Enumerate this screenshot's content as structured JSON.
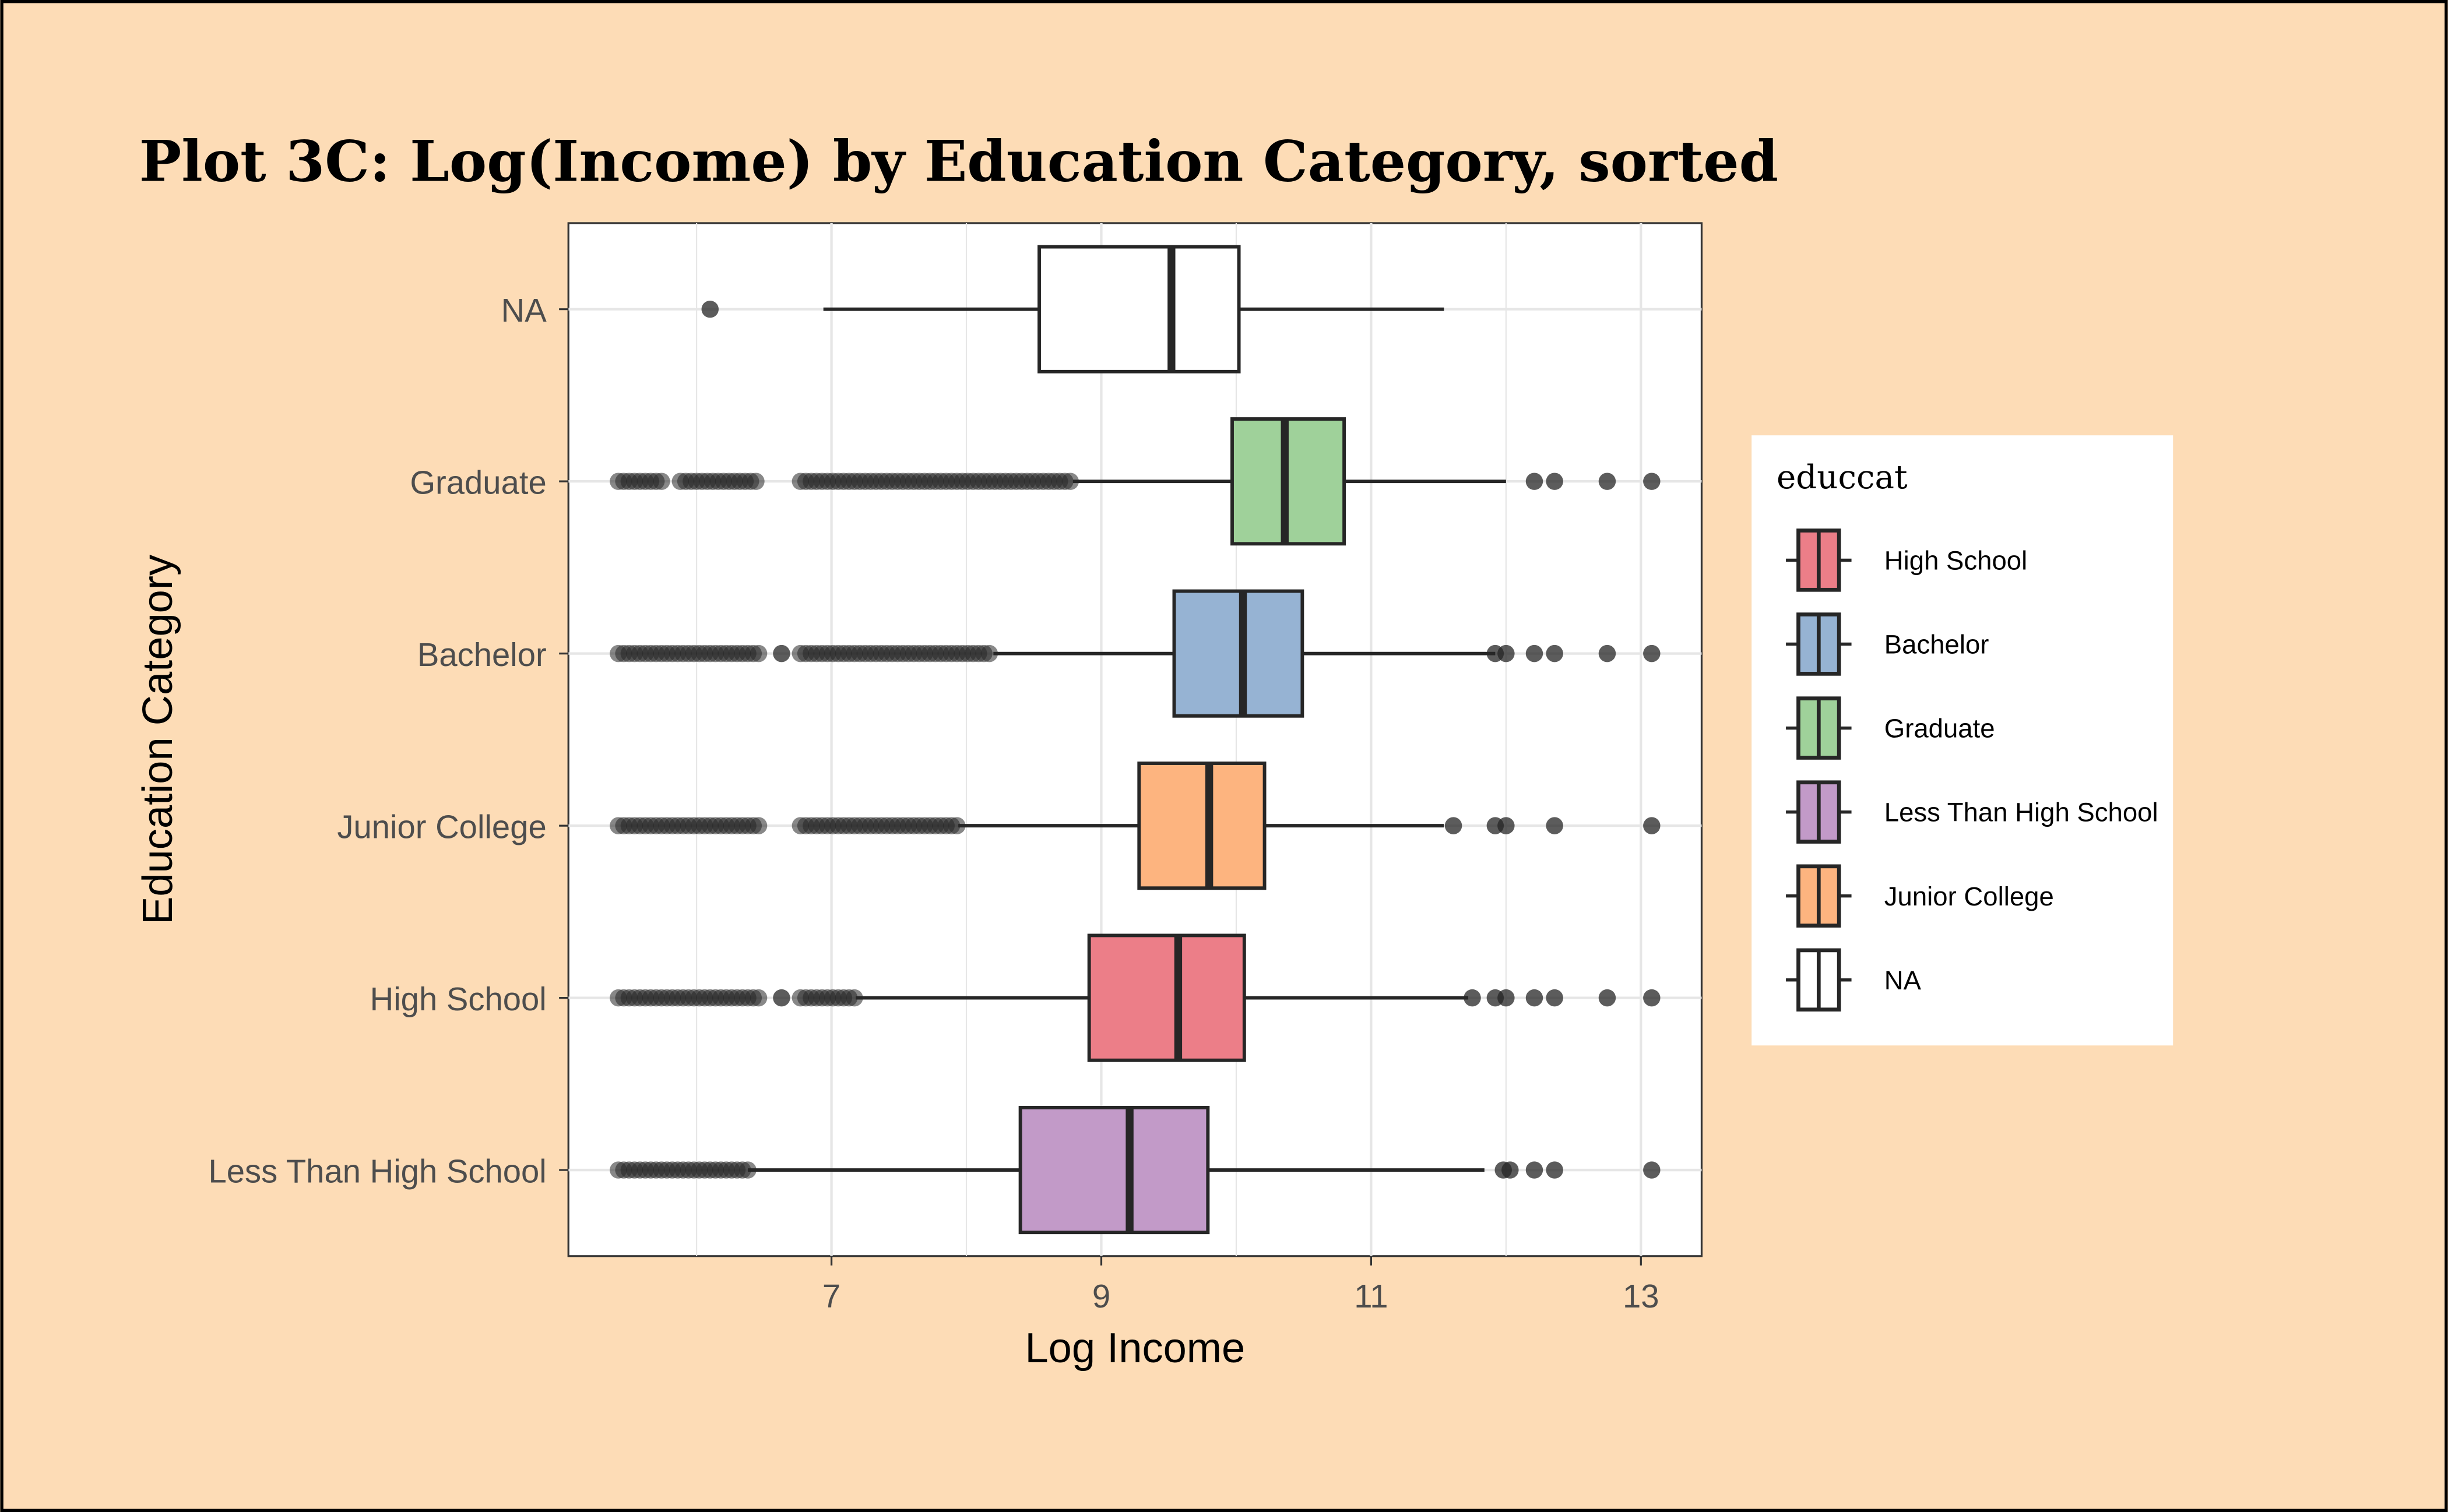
{
  "chart_data": {
    "type": "boxplot",
    "orientation": "horizontal",
    "title": "Plot 3C: Log(Income) by Education Category, sorted",
    "xlabel": "Log Income",
    "ylabel": "Education Category",
    "xlim": [
      5.05,
      13.45
    ],
    "xticks": [
      7,
      9,
      11,
      13
    ],
    "xtick_labels": [
      "7",
      "9",
      "11",
      "13"
    ],
    "grid": true,
    "categories_top_to_bottom": [
      "NA",
      "Graduate",
      "Bachelor",
      "Junior College",
      "High School",
      "Less Than High School"
    ],
    "series": [
      {
        "name": "NA",
        "color": "#ffffff",
        "whisker_low": 6.94,
        "q1": 8.54,
        "median": 9.52,
        "q3": 10.02,
        "whisker_high": 11.54,
        "outliers": [
          6.1
        ],
        "outlier_bands": []
      },
      {
        "name": "Graduate",
        "color": "#9fd19a",
        "whisker_low": 8.79,
        "q1": 9.97,
        "median": 10.36,
        "q3": 10.8,
        "whisker_high": 12.0,
        "outliers": [
          12.21,
          12.36,
          12.75,
          13.08
        ],
        "outlier_bands": [
          [
            5.42,
            5.75
          ],
          [
            5.88,
            6.46
          ],
          [
            6.77,
            8.79
          ]
        ]
      },
      {
        "name": "Bachelor",
        "color": "#96b3d3",
        "whisker_low": 8.2,
        "q1": 9.54,
        "median": 10.05,
        "q3": 10.49,
        "whisker_high": 11.92,
        "outliers": [
          6.63,
          11.92,
          12.0,
          12.21,
          12.36,
          12.75,
          13.08
        ],
        "outlier_bands": [
          [
            5.42,
            6.46
          ],
          [
            6.77,
            8.2
          ]
        ]
      },
      {
        "name": "Junior College",
        "color": "#fdb47f",
        "whisker_low": 7.94,
        "q1": 9.28,
        "median": 9.8,
        "q3": 10.21,
        "whisker_high": 11.54,
        "outliers": [
          11.61,
          11.92,
          12.0,
          12.36,
          13.08
        ],
        "outlier_bands": [
          [
            5.42,
            6.46
          ],
          [
            6.77,
            7.94
          ]
        ]
      },
      {
        "name": "High School",
        "color": "#ec7e88",
        "whisker_low": 7.18,
        "q1": 8.91,
        "median": 9.57,
        "q3": 10.06,
        "whisker_high": 11.72,
        "outliers": [
          6.63,
          11.75,
          11.92,
          12.0,
          12.21,
          12.36,
          12.75,
          13.08
        ],
        "outlier_bands": [
          [
            5.42,
            6.46
          ],
          [
            6.77,
            7.18
          ]
        ]
      },
      {
        "name": "Less Than High School",
        "color": "#c29ac8",
        "whisker_low": 6.38,
        "q1": 8.4,
        "median": 9.21,
        "q3": 9.79,
        "whisker_high": 11.84,
        "outliers": [
          11.98,
          12.03,
          12.21,
          12.36,
          13.08
        ],
        "outlier_bands": [
          [
            5.42,
            6.38
          ]
        ]
      }
    ],
    "legend": {
      "title": "educcat",
      "placement": "right",
      "entries": [
        {
          "label": "High School",
          "color": "#ec7e88"
        },
        {
          "label": "Bachelor",
          "color": "#96b3d3"
        },
        {
          "label": "Graduate",
          "color": "#9fd19a"
        },
        {
          "label": "Less Than High School",
          "color": "#c29ac8"
        },
        {
          "label": "Junior College",
          "color": "#fdb47f"
        },
        {
          "label": "NA",
          "color": "#ffffff"
        }
      ]
    }
  },
  "colors": {
    "background": "#fddcb6",
    "ink": "#262626",
    "grid": "#e6e6e6"
  }
}
